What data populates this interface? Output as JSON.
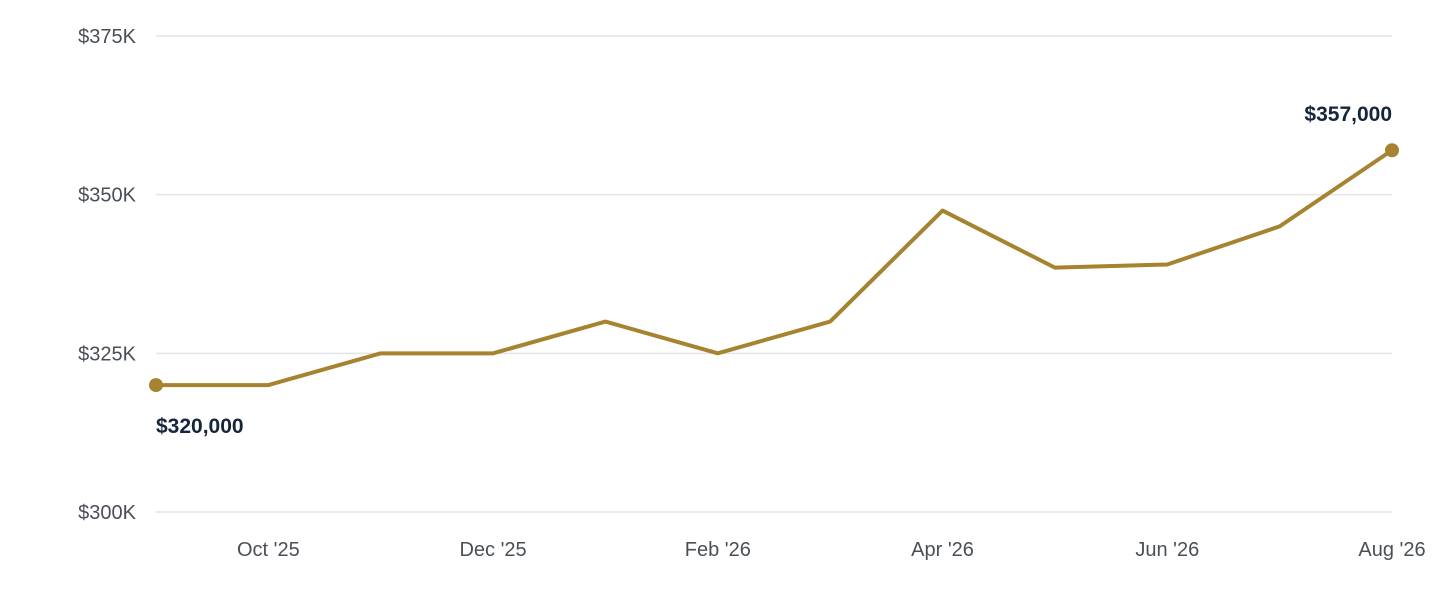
{
  "colors": {
    "series": "#a5832f",
    "grid": "#e3e4e8",
    "tick_text": "#4a4f57",
    "label_text": "#15253a"
  },
  "chart_data": {
    "type": "line",
    "title": "",
    "xlabel": "",
    "ylabel": "",
    "grid": "horizontal",
    "legend": "none",
    "x": [
      "2025-09",
      "2025-10",
      "2025-11",
      "2025-12",
      "2026-01",
      "2026-02",
      "2026-03",
      "2026-04",
      "2026-05",
      "2026-06",
      "2026-07",
      "2026-08"
    ],
    "x_ticks": [
      {
        "x": "2025-10",
        "label": "Oct '25"
      },
      {
        "x": "2025-12",
        "label": "Dec '25"
      },
      {
        "x": "2026-02",
        "label": "Feb '26"
      },
      {
        "x": "2026-04",
        "label": "Apr '26"
      },
      {
        "x": "2026-06",
        "label": "Jun '26"
      },
      {
        "x": "2026-08",
        "label": "Aug '26"
      }
    ],
    "ylim": [
      300000,
      375000
    ],
    "y_ticks": [
      {
        "value": 300000,
        "label": "$300K"
      },
      {
        "value": 325000,
        "label": "$325K"
      },
      {
        "value": 350000,
        "label": "$350K"
      },
      {
        "value": 375000,
        "label": "$375K"
      }
    ],
    "series": [
      {
        "values": [
          320000,
          320000,
          325000,
          325000,
          330000,
          325000,
          330000,
          347500,
          338500,
          339000,
          345000,
          357000
        ]
      }
    ],
    "annotations": [
      {
        "index": 0,
        "label": "$320,000",
        "position": "below"
      },
      {
        "index": 11,
        "label": "$357,000",
        "position": "above"
      }
    ]
  }
}
